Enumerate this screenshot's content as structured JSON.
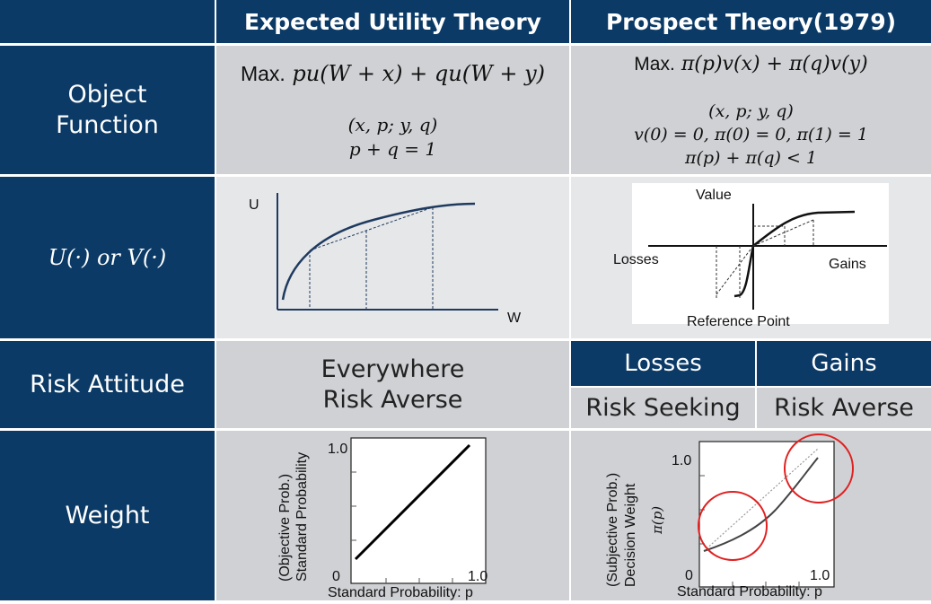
{
  "header": {
    "col1": "Expected Utility Theory",
    "col2": "Prospect Theory(1979)"
  },
  "rows": {
    "object_function": "Object\nFunction",
    "u_or_v": "U(·) or V(·)",
    "risk_attitude": "Risk Attitude",
    "weight": "Weight"
  },
  "eut": {
    "formula_max": "Max.",
    "formula": "pu(W + x) + qu(W + y)",
    "lottery": "(x, p; y, q)",
    "constraint": "p + q = 1",
    "graph": {
      "y_label": "U",
      "x_label": "W"
    },
    "risk_attitude": "Everywhere\nRisk Averse",
    "weight_chart": {
      "y_label_line1": "(Objective Prob.)",
      "y_label_line2": "Standard Probability",
      "y_top": "1.0",
      "x_zero": "0",
      "x_one": "1.0",
      "x_label": "Standard Probability: p"
    }
  },
  "pt": {
    "formula_max": "Max.",
    "formula": "π(p)v(x) + π(q)v(y)",
    "lottery": "(x, p; y, q)",
    "conditions": "v(0) = 0, π(0) = 0, π(1) = 1",
    "inequality": "π(p) + π(q) < 1",
    "graph": {
      "value_label": "Value",
      "losses_label": "Losses",
      "gains_label": "Gains",
      "reference_label": "Reference Point"
    },
    "risk_attitude": {
      "losses_header": "Losses",
      "gains_header": "Gains",
      "losses_value": "Risk Seeking",
      "gains_value": "Risk Averse"
    },
    "weight_chart": {
      "y_label_line1": "(Subjective Prob.)",
      "y_label_line2": "Decision Weight",
      "y_label_line3": "π(p)",
      "y_top": "1.0",
      "x_zero": "0",
      "x_one": "1.0",
      "x_label": "Standard Probability: p"
    }
  },
  "colors": {
    "navy": "#0b3a66",
    "gray": "#cfd1d4",
    "light_gray": "#e6e7e9",
    "curve": "#1e3a5f",
    "highlight_circle": "#e02020"
  }
}
